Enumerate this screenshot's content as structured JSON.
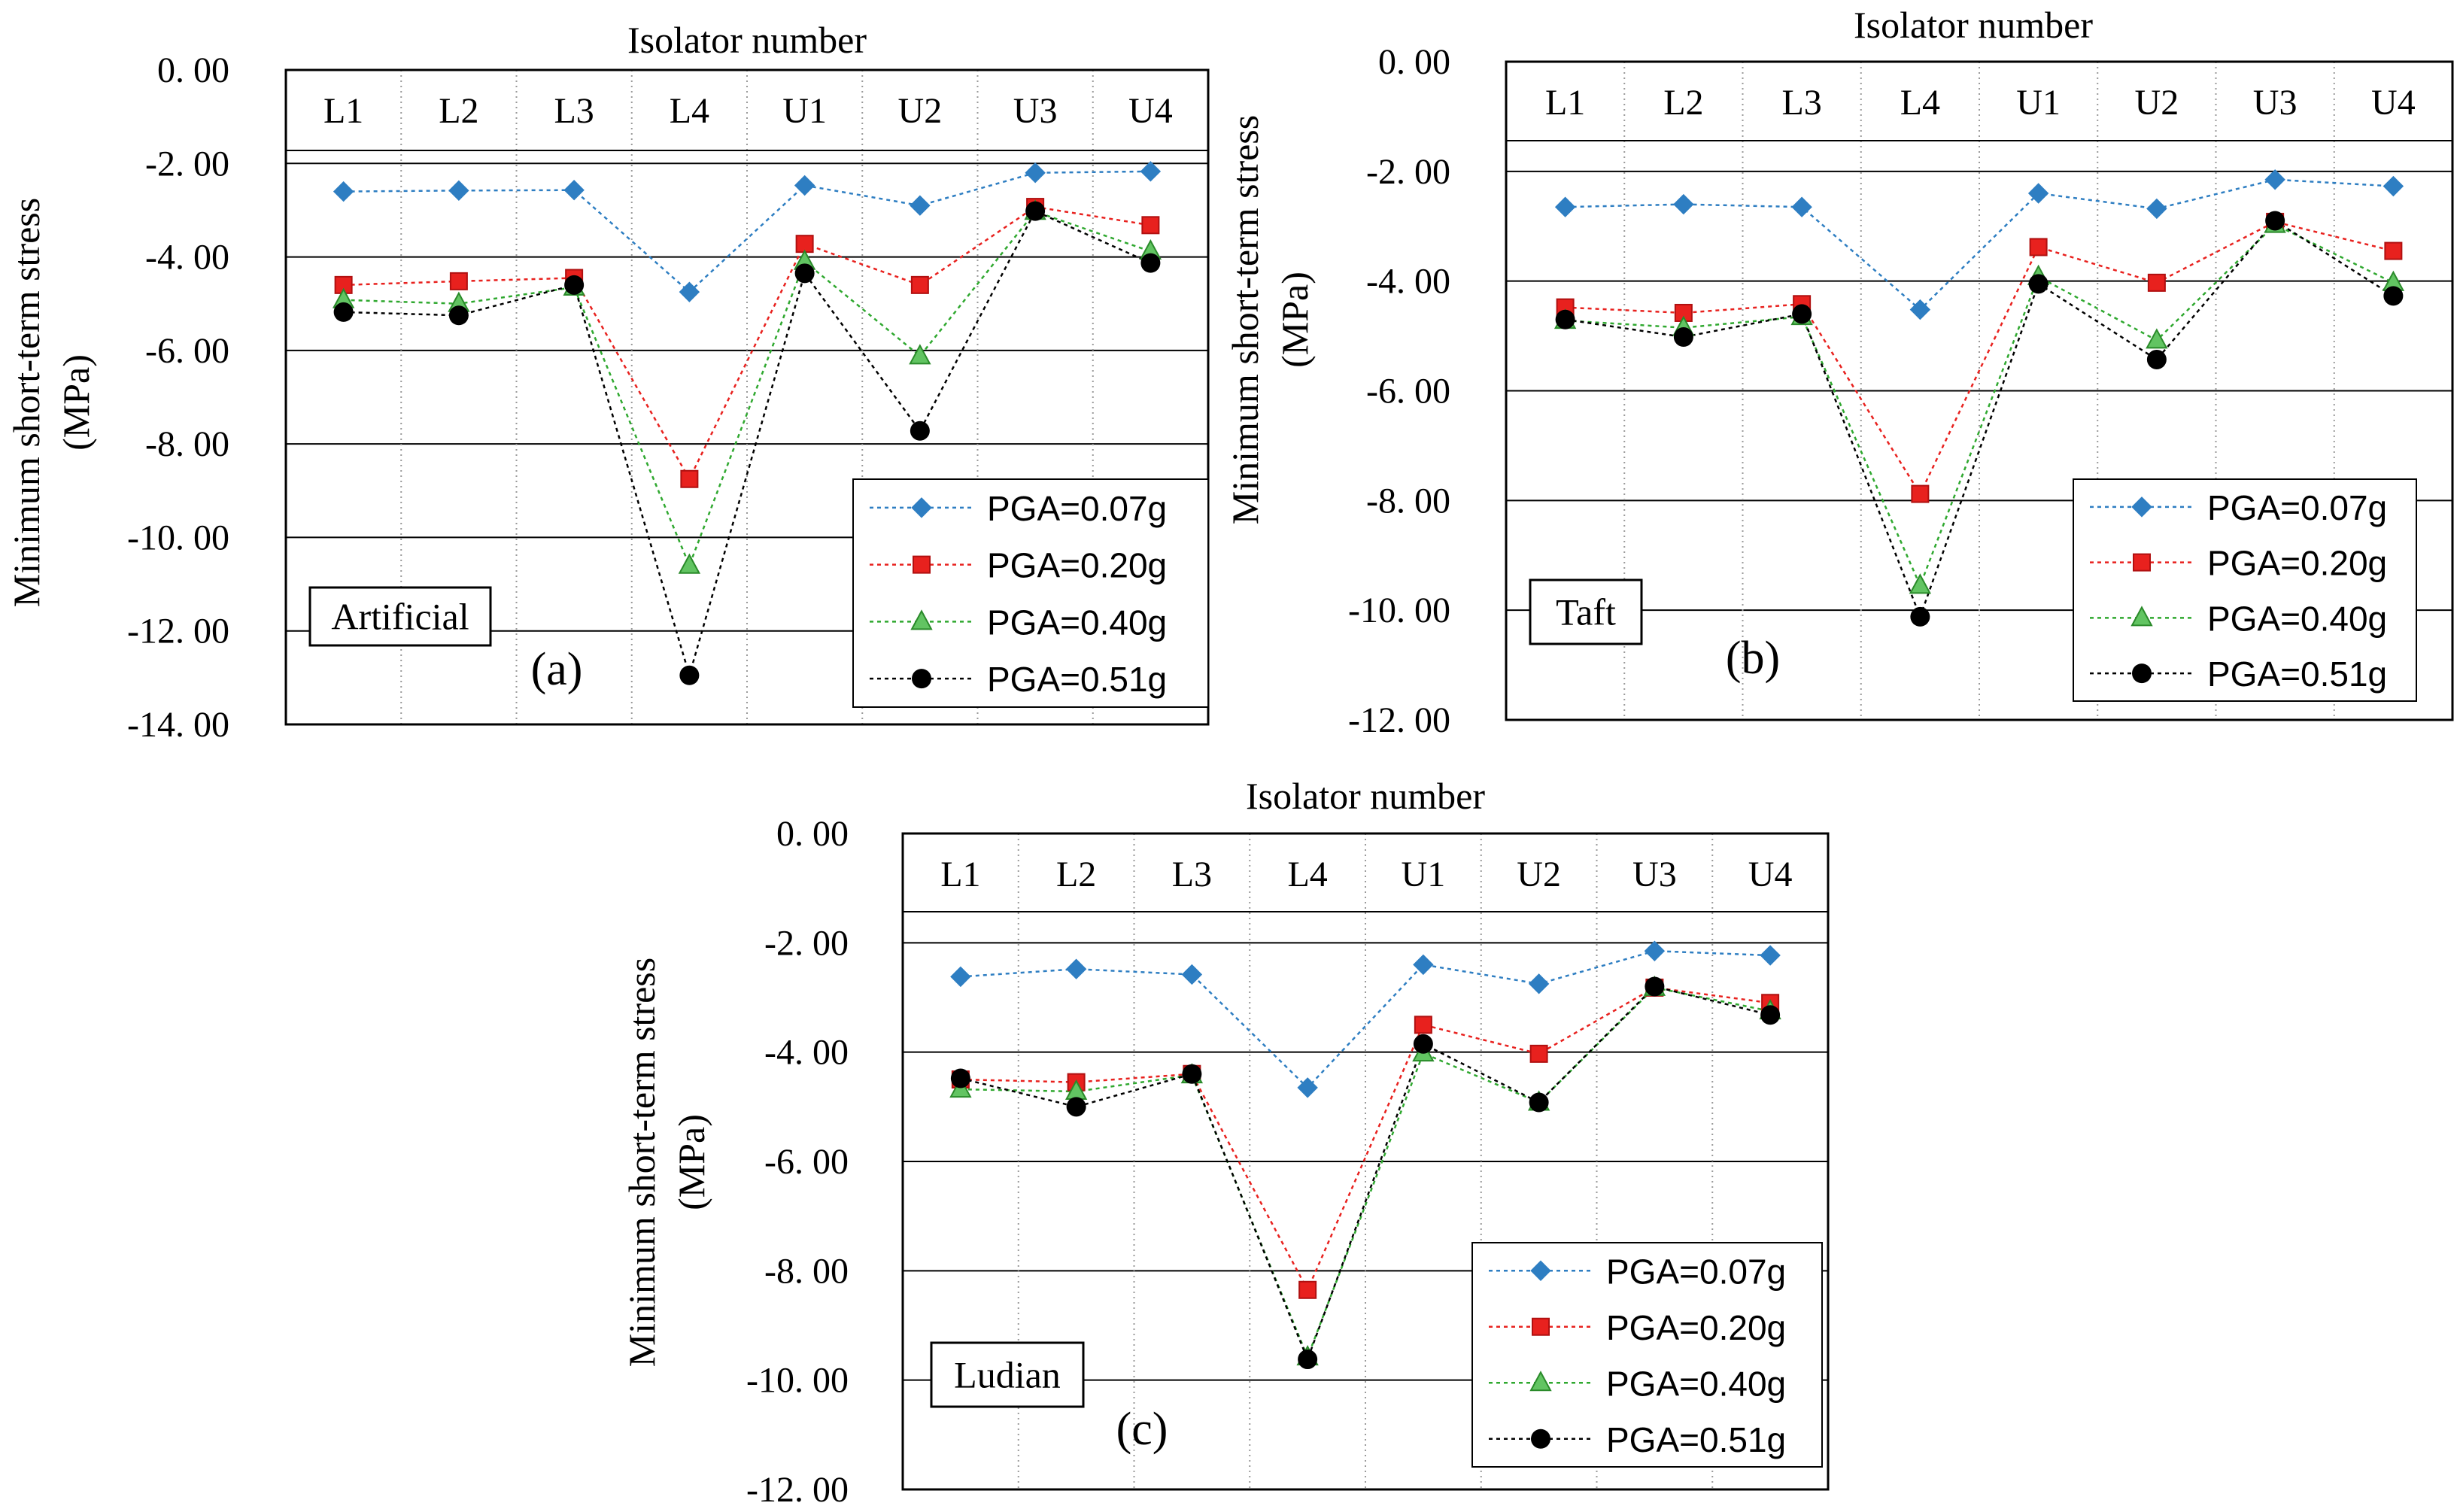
{
  "chart_data": [
    {
      "type": "line",
      "panel_label": "(a)",
      "record": "Artificial",
      "title": "Isolator number",
      "xlabel": "Isolator number",
      "ylabel_line1": "Minimum short-term  stress",
      "ylabel_line2": "(MPa)",
      "categories": [
        "L1",
        "L2",
        "L3",
        "L4",
        "U1",
        "U2",
        "U3",
        "U4"
      ],
      "ylim": [
        -14,
        0
      ],
      "yticks": [
        "0. 00",
        "-2. 00",
        "-4. 00",
        "-6. 00",
        "-8. 00",
        "-10. 00",
        "-12. 00",
        "-14. 00"
      ],
      "ytick_values": [
        0,
        -2,
        -4,
        -6,
        -8,
        -10,
        -12,
        -14
      ],
      "grid": true,
      "legend_position": "bottom-right",
      "series": [
        {
          "name": "PGA=0.07g",
          "marker": "diamond",
          "color": "#2E7EC2",
          "values": [
            -2.6,
            -2.58,
            -2.57,
            -4.75,
            -2.47,
            -2.9,
            -2.2,
            -2.17
          ]
        },
        {
          "name": "PGA=0.20g",
          "marker": "square",
          "color": "#E8211E",
          "values": [
            -4.6,
            -4.52,
            -4.45,
            -8.75,
            -3.72,
            -4.6,
            -2.93,
            -3.32
          ]
        },
        {
          "name": "PGA=0.40g",
          "marker": "triangle",
          "color": "#2FA82F",
          "values": [
            -4.92,
            -5.0,
            -4.65,
            -10.6,
            -4.1,
            -6.12,
            -3.03,
            -3.88
          ]
        },
        {
          "name": "PGA=0.51g",
          "marker": "circle",
          "color": "#000000",
          "values": [
            -5.18,
            -5.25,
            -4.6,
            -12.95,
            -4.35,
            -7.72,
            -3.02,
            -4.13
          ]
        }
      ]
    },
    {
      "type": "line",
      "panel_label": "(b)",
      "record": "Taft",
      "title": "Isolator number",
      "xlabel": "Isolator number",
      "ylabel_line1": "Minimum short-term  stress",
      "ylabel_line2": "(MPa)",
      "categories": [
        "L1",
        "L2",
        "L3",
        "L4",
        "U1",
        "U2",
        "U3",
        "U4"
      ],
      "ylim": [
        -12,
        0
      ],
      "yticks": [
        "0. 00",
        "-2. 00",
        "-4. 00",
        "-6. 00",
        "-8. 00",
        "-10. 00",
        "-12. 00"
      ],
      "ytick_values": [
        0,
        -2,
        -4,
        -6,
        -8,
        -10,
        -12
      ],
      "grid": true,
      "legend_position": "bottom-right",
      "series": [
        {
          "name": "PGA=0.07g",
          "marker": "diamond",
          "color": "#2E7EC2",
          "values": [
            -2.65,
            -2.6,
            -2.65,
            -4.52,
            -2.4,
            -2.68,
            -2.15,
            -2.27
          ]
        },
        {
          "name": "PGA=0.20g",
          "marker": "square",
          "color": "#E8211E",
          "values": [
            -4.48,
            -4.58,
            -4.42,
            -7.88,
            -3.38,
            -4.03,
            -2.92,
            -3.45
          ]
        },
        {
          "name": "PGA=0.40g",
          "marker": "triangle",
          "color": "#2FA82F",
          "values": [
            -4.72,
            -4.85,
            -4.65,
            -9.55,
            -3.92,
            -5.08,
            -2.97,
            -4.03
          ]
        },
        {
          "name": "PGA=0.51g",
          "marker": "circle",
          "color": "#000000",
          "values": [
            -4.7,
            -5.02,
            -4.6,
            -10.12,
            -4.05,
            -5.43,
            -2.9,
            -4.27
          ]
        }
      ]
    },
    {
      "type": "line",
      "panel_label": "(c)",
      "record": "Ludian",
      "title": "Isolator number",
      "xlabel": "Isolator number",
      "ylabel_line1": "Minimum short-term  stress",
      "ylabel_line2": "(MPa)",
      "categories": [
        "L1",
        "L2",
        "L3",
        "L4",
        "U1",
        "U2",
        "U3",
        "U4"
      ],
      "ylim": [
        -12,
        0
      ],
      "yticks": [
        "0. 00",
        "-2. 00",
        "-4. 00",
        "-6. 00",
        "-8. 00",
        "-10. 00",
        "-12. 00"
      ],
      "ytick_values": [
        0,
        -2,
        -4,
        -6,
        -8,
        -10,
        -12
      ],
      "grid": true,
      "legend_position": "bottom-right",
      "series": [
        {
          "name": "PGA=0.07g",
          "marker": "diamond",
          "color": "#2E7EC2",
          "values": [
            -2.62,
            -2.48,
            -2.58,
            -4.65,
            -2.4,
            -2.75,
            -2.15,
            -2.23
          ]
        },
        {
          "name": "PGA=0.20g",
          "marker": "square",
          "color": "#E8211E",
          "values": [
            -4.5,
            -4.55,
            -4.4,
            -8.35,
            -3.5,
            -4.03,
            -2.82,
            -3.1
          ]
        },
        {
          "name": "PGA=0.40g",
          "marker": "triangle",
          "color": "#2FA82F",
          "values": [
            -4.68,
            -4.72,
            -4.42,
            -9.58,
            -4.02,
            -4.92,
            -2.82,
            -3.25
          ]
        },
        {
          "name": "PGA=0.51g",
          "marker": "circle",
          "color": "#000000",
          "values": [
            -4.48,
            -5.0,
            -4.4,
            -9.62,
            -3.85,
            -4.92,
            -2.8,
            -3.32
          ]
        }
      ]
    }
  ]
}
